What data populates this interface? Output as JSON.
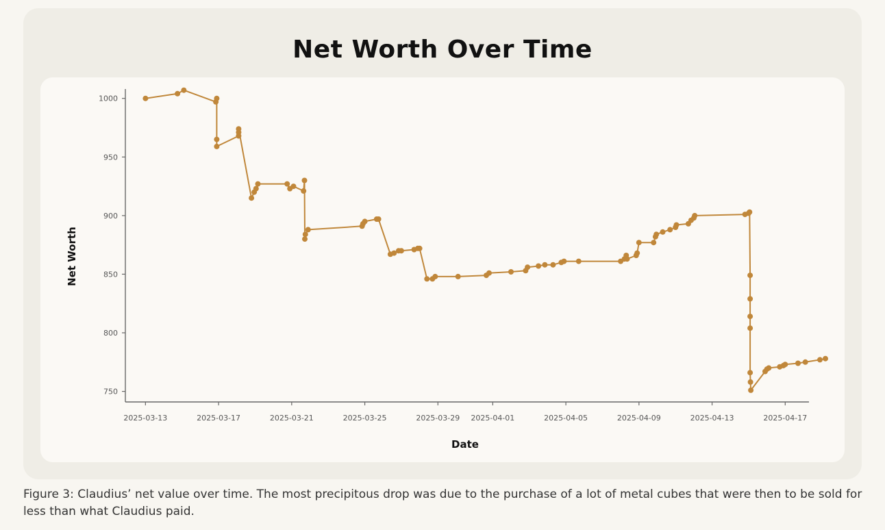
{
  "figure": {
    "caption": "Figure 3: Claudius’ net value over time. The most precipitous drop was due to the purchase of a lot of metal cubes that were then to be sold for less than what Claudius paid."
  },
  "colors": {
    "line": "#c0873a",
    "axis": "#666666",
    "card": "#efede6",
    "panel": "#fbf9f5"
  },
  "chart_data": {
    "type": "line",
    "title": "Net Worth Over Time",
    "xlabel": "Date",
    "ylabel": "Net Worth",
    "ylim": [
      741,
      1008
    ],
    "xlim_days": [
      -1.1,
      36.3
    ],
    "x_origin": "2025-03-13",
    "y_ticks": [
      750,
      800,
      850,
      900,
      950,
      1000
    ],
    "x_ticks": [
      {
        "label": "2025-03-13",
        "day": 0
      },
      {
        "label": "2025-03-17",
        "day": 4
      },
      {
        "label": "2025-03-21",
        "day": 8
      },
      {
        "label": "2025-03-25",
        "day": 12
      },
      {
        "label": "2025-03-29",
        "day": 16
      },
      {
        "label": "2025-04-01",
        "day": 19
      },
      {
        "label": "2025-04-05",
        "day": 23
      },
      {
        "label": "2025-04-09",
        "day": 27
      },
      {
        "label": "2025-04-13",
        "day": 31
      },
      {
        "label": "2025-04-17",
        "day": 35
      }
    ],
    "series": [
      {
        "name": "Net Worth",
        "points": [
          [
            0.0,
            1000
          ],
          [
            1.75,
            1004
          ],
          [
            2.1,
            1007
          ],
          [
            3.85,
            997
          ],
          [
            3.9,
            1000
          ],
          [
            3.9,
            965
          ],
          [
            3.9,
            959
          ],
          [
            5.1,
            968
          ],
          [
            5.1,
            971
          ],
          [
            5.1,
            974
          ],
          [
            5.8,
            915
          ],
          [
            5.95,
            920
          ],
          [
            6.05,
            923
          ],
          [
            6.15,
            927
          ],
          [
            7.75,
            927
          ],
          [
            7.9,
            923
          ],
          [
            8.1,
            925
          ],
          [
            8.65,
            921
          ],
          [
            8.7,
            930
          ],
          [
            8.72,
            880
          ],
          [
            8.75,
            884
          ],
          [
            8.9,
            888
          ],
          [
            11.85,
            891
          ],
          [
            11.9,
            893
          ],
          [
            12.0,
            895
          ],
          [
            12.65,
            897
          ],
          [
            12.75,
            897
          ],
          [
            13.4,
            867
          ],
          [
            13.6,
            868
          ],
          [
            13.85,
            870
          ],
          [
            14.0,
            870
          ],
          [
            14.7,
            871
          ],
          [
            14.9,
            872
          ],
          [
            15.0,
            872
          ],
          [
            15.4,
            846
          ],
          [
            15.7,
            846
          ],
          [
            15.85,
            848
          ],
          [
            17.1,
            848
          ],
          [
            18.65,
            849
          ],
          [
            18.8,
            851
          ],
          [
            20.0,
            852
          ],
          [
            20.8,
            853
          ],
          [
            20.9,
            856
          ],
          [
            21.5,
            857
          ],
          [
            21.85,
            858
          ],
          [
            22.3,
            858
          ],
          [
            22.75,
            860
          ],
          [
            22.9,
            861
          ],
          [
            23.7,
            861
          ],
          [
            26.0,
            861
          ],
          [
            26.2,
            863
          ],
          [
            26.3,
            866
          ],
          [
            26.35,
            863
          ],
          [
            26.85,
            866
          ],
          [
            26.9,
            868
          ],
          [
            27.0,
            877
          ],
          [
            27.8,
            877
          ],
          [
            27.9,
            882
          ],
          [
            27.95,
            884
          ],
          [
            28.3,
            886
          ],
          [
            28.7,
            888
          ],
          [
            29.0,
            890
          ],
          [
            29.05,
            892
          ],
          [
            29.7,
            893
          ],
          [
            29.85,
            896
          ],
          [
            30.0,
            898
          ],
          [
            30.05,
            900
          ],
          [
            32.8,
            901
          ],
          [
            33.0,
            902
          ],
          [
            33.05,
            903
          ],
          [
            33.08,
            849
          ],
          [
            33.08,
            829
          ],
          [
            33.08,
            814
          ],
          [
            33.08,
            804
          ],
          [
            33.08,
            766
          ],
          [
            33.1,
            758
          ],
          [
            33.12,
            751
          ],
          [
            33.9,
            767
          ],
          [
            34.0,
            769
          ],
          [
            34.1,
            770
          ],
          [
            34.7,
            771
          ],
          [
            34.9,
            772
          ],
          [
            35.0,
            773
          ],
          [
            35.7,
            774
          ],
          [
            36.1,
            775
          ],
          [
            36.9,
            777
          ],
          [
            37.2,
            778
          ]
        ]
      }
    ]
  }
}
